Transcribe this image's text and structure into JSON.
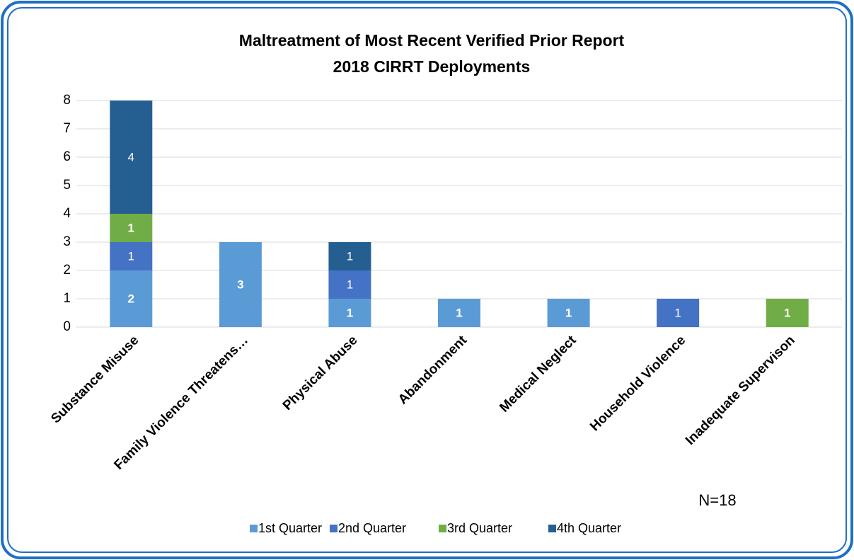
{
  "chart_data": {
    "type": "stacked_bar",
    "title": [
      "Maltreatment of Most Recent Verified Prior Report",
      "2018 CIRRT Deployments"
    ],
    "categories": [
      "Substance Misuse",
      "Family Violence Threatens…",
      "Physical Abuse",
      "Abandonment",
      "Medical Neglect",
      "Household Violence",
      "Inadequate Supervison"
    ],
    "series": [
      {
        "name": "1st Quarter",
        "color": "#5b9bd5",
        "values": [
          2,
          3,
          1,
          1,
          1,
          null,
          null
        ]
      },
      {
        "name": "2nd Quarter",
        "color": "#4472c4",
        "values": [
          1,
          null,
          1,
          null,
          null,
          1,
          null
        ]
      },
      {
        "name": "3rd Quarter",
        "color": "#70ad47",
        "values": [
          1,
          null,
          null,
          null,
          null,
          null,
          1
        ]
      },
      {
        "name": "4th Quarter",
        "color": "#255e91",
        "values": [
          4,
          null,
          1,
          null,
          null,
          null,
          null
        ]
      }
    ],
    "ylim": [
      0,
      8
    ],
    "yticks": [
      0,
      1,
      2,
      3,
      4,
      5,
      6,
      7,
      8
    ],
    "grid": true,
    "legend": "bottom",
    "annotation": "N=18"
  }
}
